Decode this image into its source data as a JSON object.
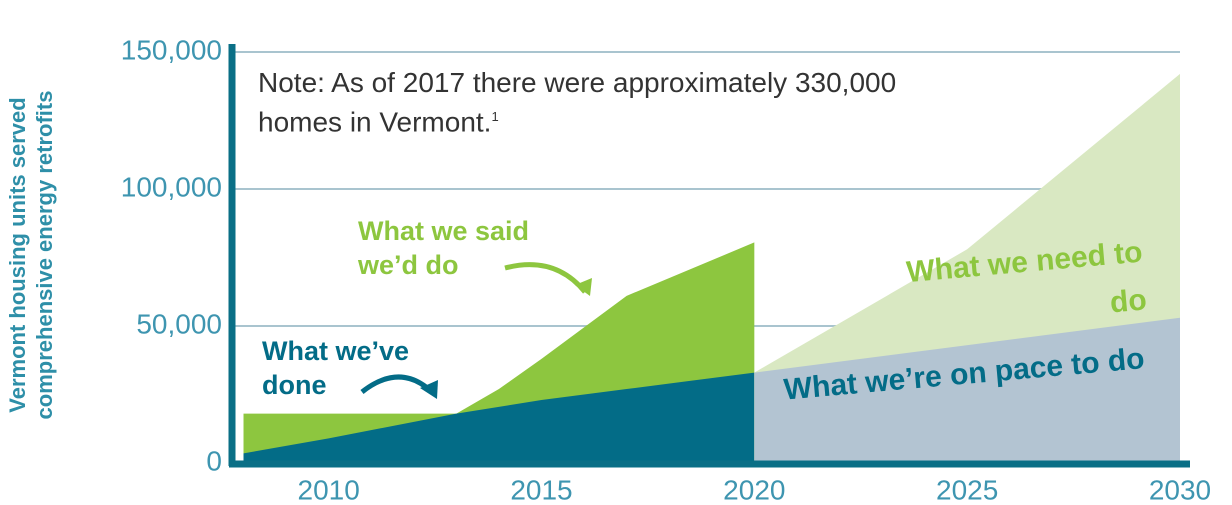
{
  "chart_data": {
    "type": "area",
    "ylabel": "Vermont housing units served comprehensive energy retrofits",
    "note": "Note: As of 2017 there were approximately 330,000 homes in Vermont.",
    "note_ref": "1",
    "xlim": [
      2007.8,
      2030
    ],
    "xticks": [
      2010,
      2015,
      2020,
      2025,
      2030
    ],
    "ylim": [
      0,
      150000
    ],
    "yticks": [
      0,
      {
        "value": 50000,
        "label": "50,000"
      },
      {
        "value": 100000,
        "label": "100,000"
      },
      {
        "value": 150000,
        "label": "150,000"
      }
    ],
    "grid": true,
    "series": [
      {
        "name": "What we said we’d do",
        "color": "#8dc63f",
        "x": [
          2008,
          2013,
          2014,
          2015,
          2017,
          2020
        ],
        "values": [
          18000,
          18000,
          27000,
          38000,
          61000,
          80500
        ]
      },
      {
        "name": "What we’ve done",
        "color": "#036c87",
        "x": [
          2008,
          2010,
          2013,
          2015,
          2017,
          2020
        ],
        "values": [
          3500,
          9000,
          18000,
          23000,
          27000,
          33000
        ]
      },
      {
        "name": "What we need to do",
        "color": "#d9e8c2",
        "x": [
          2020,
          2025,
          2030
        ],
        "values": [
          33000,
          78000,
          142000
        ]
      },
      {
        "name": "What we’re on pace to do",
        "color": "#b3c4d2",
        "x": [
          2020,
          2030
        ],
        "values": [
          33000,
          53000
        ]
      }
    ]
  }
}
